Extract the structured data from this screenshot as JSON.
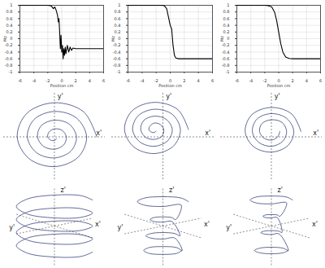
{
  "chart_data": [
    {
      "type": "line",
      "xlabel": "Position cm",
      "ylabel": "Mz",
      "color": "#000000",
      "grid": true,
      "xlim": [
        -6,
        6
      ],
      "ylim": [
        -1,
        1
      ],
      "xticks": [
        -6,
        -4,
        -2,
        0,
        2,
        4,
        6
      ],
      "yticks": [
        -1,
        -0.8,
        -0.6,
        -0.4,
        -0.2,
        0,
        0.2,
        0.4,
        0.6,
        0.8,
        1
      ],
      "x": [
        -6,
        -2,
        -1.5,
        -1.2,
        -1.0,
        -0.8,
        -0.6,
        -0.5,
        -0.4,
        -0.3,
        -0.2,
        -0.1,
        0,
        0.1,
        0.2,
        0.3,
        0.4,
        0.5,
        0.6,
        0.8,
        1.0,
        1.2,
        1.4,
        1.6,
        2.0,
        6
      ],
      "values": [
        1,
        1,
        0.98,
        0.9,
        0.95,
        0.85,
        0.7,
        0.5,
        0.6,
        0.2,
        -0.3,
        0.1,
        -0.4,
        -0.2,
        -0.6,
        -0.3,
        -0.5,
        -0.25,
        -0.45,
        -0.2,
        -0.4,
        -0.25,
        -0.35,
        -0.28,
        -0.3,
        -0.3
      ]
    },
    {
      "type": "line",
      "xlabel": "Position cm",
      "ylabel": "Mz",
      "color": "#000000",
      "grid": true,
      "xlim": [
        -6,
        6
      ],
      "ylim": [
        -1,
        1
      ],
      "xticks": [
        -6,
        -4,
        -2,
        0,
        2,
        4,
        6
      ],
      "yticks": [
        -1,
        -0.8,
        -0.6,
        -0.4,
        -0.2,
        0,
        0.2,
        0.4,
        0.6,
        0.8,
        1
      ],
      "x": [
        -6,
        -1.2,
        -0.8,
        -0.5,
        -0.3,
        0,
        0.2,
        0.4,
        0.6,
        0.8,
        1.2,
        6
      ],
      "values": [
        1,
        1,
        0.98,
        0.9,
        0.7,
        0.4,
        0.3,
        -0.2,
        -0.5,
        -0.58,
        -0.6,
        -0.6
      ]
    },
    {
      "type": "line",
      "xlabel": "Position cm",
      "ylabel": "Mz",
      "color": "#000000",
      "grid": true,
      "xlim": [
        -6,
        6
      ],
      "ylim": [
        -1,
        1
      ],
      "xticks": [
        -6,
        -4,
        -2,
        0,
        2,
        4,
        6
      ],
      "yticks": [
        -1,
        -0.8,
        -0.6,
        -0.4,
        -0.2,
        0,
        0.2,
        0.4,
        0.6,
        0.8,
        1
      ],
      "x": [
        -6,
        -2,
        -1.5,
        -1,
        -0.6,
        -0.3,
        0,
        0.3,
        0.6,
        1,
        1.5,
        2,
        6
      ],
      "values": [
        1,
        1,
        0.99,
        0.95,
        0.8,
        0.55,
        0.2,
        -0.15,
        -0.4,
        -0.55,
        -0.59,
        -0.6,
        -0.6
      ]
    },
    {
      "type": "trajectory2d",
      "xlabel": "x'",
      "ylabel": "y'",
      "color": "#1f2a6b",
      "tick_labels": false,
      "xlim": [
        -1.2,
        1.2
      ],
      "ylim": [
        -1.2,
        1.2
      ],
      "x": [
        1.0,
        0.69,
        0,
        -0.65,
        -0.88,
        -0.6,
        0,
        0.56,
        0.76,
        0.52,
        0,
        -0.48,
        -0.64,
        -0.43,
        0,
        0.39,
        0.52,
        0.35,
        0,
        -0.31,
        -0.4,
        -0.26,
        0,
        0.22,
        0.28,
        0.18,
        0,
        -0.13,
        -0.16,
        -0.09,
        0,
        0.05
      ],
      "values": [
        0,
        0.69,
        0.94,
        0.65,
        0,
        -0.6,
        -0.82,
        -0.56,
        0,
        0.52,
        0.7,
        0.48,
        0,
        -0.43,
        -0.58,
        -0.39,
        0,
        0.35,
        0.46,
        0.31,
        0,
        -0.26,
        -0.34,
        -0.22,
        0,
        0.18,
        0.22,
        0.13,
        0,
        -0.09,
        -0.1,
        -0.05
      ]
    },
    {
      "type": "trajectory2d",
      "xlabel": "x'",
      "ylabel": "y'",
      "color": "#1f2a6b",
      "tick_labels": false,
      "xlim": [
        -1.2,
        1.2
      ],
      "ylim": [
        -1.2,
        1.2
      ],
      "x": [
        0.6,
        0.35,
        -0.2,
        -0.72,
        -0.9,
        -0.68,
        -0.2,
        0.25,
        0.41,
        0.22,
        -0.2,
        -0.58,
        -0.71,
        -0.54,
        -0.2,
        0.11,
        0.22,
        0.08,
        -0.2,
        -0.45,
        -0.52,
        -0.41,
        -0.2,
        -0.02,
        0.02,
        -0.06,
        -0.2,
        -0.3,
        -0.33,
        -0.27,
        -0.2,
        -0.16
      ],
      "values": [
        0.2,
        0.75,
        0.95,
        0.72,
        0.2,
        -0.28,
        -0.46,
        -0.25,
        0.2,
        0.62,
        0.76,
        0.58,
        0.2,
        -0.14,
        -0.26,
        -0.11,
        0.2,
        0.48,
        0.57,
        0.45,
        0.2,
        -0.01,
        -0.07,
        0.02,
        0.2,
        0.34,
        0.38,
        0.3,
        0.2,
        0.13,
        0.12,
        0.16
      ]
    },
    {
      "type": "trajectory2d",
      "xlabel": "x'",
      "ylabel": "y'",
      "color": "#1f2a6b",
      "tick_labels": false,
      "xlim": [
        -1.2,
        1.2
      ],
      "ylim": [
        -1.2,
        1.2
      ],
      "x": [
        0.7,
        0.48,
        0,
        -0.46,
        -0.62,
        -0.42,
        0,
        0.39,
        0.53,
        0.36,
        0,
        -0.34,
        -0.45,
        -0.3,
        0,
        0.27,
        0.36,
        0.25,
        0,
        -0.22,
        -0.28,
        -0.18,
        0,
        0.15,
        0.2
      ],
      "values": [
        0.15,
        0.63,
        0.81,
        0.61,
        0.15,
        -0.27,
        -0.42,
        -0.24,
        0.15,
        0.51,
        0.64,
        0.49,
        0.15,
        -0.15,
        -0.26,
        -0.12,
        0.15,
        0.4,
        0.47,
        0.37,
        0.15,
        -0.03,
        -0.09,
        0,
        0.15
      ]
    },
    {
      "type": "trajectory3d",
      "xlabel": "x'",
      "ylabel": "y'",
      "zlabel": "z'",
      "color": "#1f2a6b",
      "tick_labels": false,
      "xlim": [
        -1.2,
        1.2
      ],
      "ylim": [
        -1.2,
        1.2
      ],
      "x": [
        0.9,
        0.64,
        0,
        -0.64,
        -0.9,
        -0.64,
        0,
        0.64,
        0.9,
        0.64,
        0,
        -0.64,
        -0.9,
        -0.64,
        0,
        0.64,
        0.9,
        0.64,
        0,
        -0.64,
        -0.9,
        -0.64,
        0,
        0.64,
        0.9,
        0.64,
        0,
        -0.64,
        -0.9,
        -0.64,
        0,
        0.64,
        0.9
      ],
      "values": [
        0.8,
        0.93,
        0.95,
        0.83,
        0.6,
        0.37,
        0.25,
        0.27,
        0.4,
        0.53,
        0.55,
        0.43,
        0.2,
        -0.03,
        -0.15,
        -0.13,
        0,
        0.13,
        0.15,
        0.03,
        -0.2,
        -0.43,
        -0.55,
        -0.53,
        -0.4,
        -0.27,
        -0.25,
        -0.37,
        -0.6,
        -0.83,
        -0.95,
        -0.93,
        -0.8
      ]
    },
    {
      "type": "trajectory3d",
      "xlabel": "x'",
      "ylabel": "y'",
      "zlabel": "z'",
      "color": "#1f2a6b",
      "tick_labels": false,
      "xlim": [
        -1.2,
        1.2
      ],
      "ylim": [
        -1.2,
        1.2
      ],
      "x": [
        0.6,
        0.43,
        0,
        -0.43,
        -0.6,
        -0.43,
        0,
        0.43,
        0.3,
        0.21,
        0,
        -0.21,
        -0.3,
        -0.21,
        0,
        0.21,
        0.4,
        0.28,
        0,
        -0.28,
        -0.4,
        -0.28,
        0,
        0.28,
        0.45,
        0.32,
        0,
        -0.32,
        -0.45,
        -0.32,
        0,
        0.32,
        0.45
      ],
      "values": [
        0.75,
        0.86,
        0.9,
        0.86,
        0.75,
        0.64,
        0.6,
        0.64,
        0.2,
        0.26,
        0.28,
        0.26,
        0.2,
        0.14,
        0.12,
        0.14,
        -0.3,
        -0.23,
        -0.2,
        -0.23,
        -0.3,
        -0.37,
        -0.4,
        -0.37,
        -0.75,
        -0.66,
        -0.63,
        -0.66,
        -0.75,
        -0.84,
        -0.87,
        -0.84,
        -0.75
      ]
    },
    {
      "type": "trajectory3d",
      "xlabel": "x'",
      "ylabel": "y'",
      "zlabel": "z'",
      "color": "#1f2a6b",
      "tick_labels": false,
      "xlim": [
        -1.2,
        1.2
      ],
      "ylim": [
        -1.2,
        1.2
      ],
      "x": [
        0.5,
        0.36,
        0,
        -0.36,
        -0.5,
        -0.36,
        0,
        0.36,
        0.2,
        0.14,
        0,
        -0.14,
        -0.2,
        -0.14,
        0,
        0.14,
        0.25,
        0.18,
        0,
        -0.18,
        -0.25,
        -0.18,
        0,
        0.18,
        0.4,
        0.28,
        0,
        -0.28,
        -0.4,
        -0.28,
        0,
        0.28,
        0.4
      ],
      "values": [
        0.8,
        0.89,
        0.92,
        0.89,
        0.8,
        0.71,
        0.68,
        0.71,
        0.3,
        0.34,
        0.35,
        0.34,
        0.3,
        0.26,
        0.25,
        0.26,
        -0.2,
        -0.16,
        -0.14,
        -0.16,
        -0.2,
        -0.24,
        -0.26,
        -0.24,
        -0.75,
        -0.68,
        -0.65,
        -0.68,
        -0.75,
        -0.82,
        -0.85,
        -0.82,
        -0.75
      ]
    }
  ]
}
